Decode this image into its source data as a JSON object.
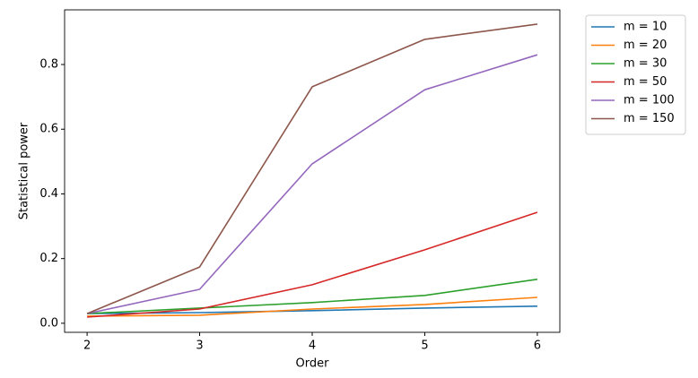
{
  "chart_data": {
    "type": "line",
    "xlabel": "Order",
    "ylabel": "Statistical power",
    "x": [
      2,
      3,
      4,
      5,
      6
    ],
    "series": [
      {
        "name": "m = 10",
        "color": "#1f77b4",
        "values": [
          0.03,
          0.033,
          0.039,
          0.047,
          0.053
        ]
      },
      {
        "name": "m = 20",
        "color": "#ff7f0e",
        "values": [
          0.022,
          0.025,
          0.044,
          0.058,
          0.08
        ]
      },
      {
        "name": "m = 30",
        "color": "#2ca02c",
        "values": [
          0.03,
          0.047,
          0.064,
          0.086,
          0.136
        ]
      },
      {
        "name": "m = 50",
        "color": "#d62728",
        "values": [
          0.019,
          0.044,
          0.119,
          0.227,
          0.343
        ]
      },
      {
        "name": "m = 100",
        "color": "#9467bd",
        "values": [
          0.03,
          0.105,
          0.493,
          0.722,
          0.83
        ]
      },
      {
        "name": "m = 150",
        "color": "#8c564b",
        "values": [
          0.03,
          0.174,
          0.731,
          0.878,
          0.925
        ]
      }
    ],
    "xlim": [
      1.8,
      6.2
    ],
    "xticks": [
      2,
      3,
      4,
      5,
      6
    ],
    "ylim": [
      -0.028,
      0.969
    ],
    "yticks": [
      {
        "value": 0,
        "label": "0.0"
      },
      0.2,
      0.4,
      0.6,
      0.8
    ],
    "grid": false,
    "legend": "outside-upper-right"
  }
}
